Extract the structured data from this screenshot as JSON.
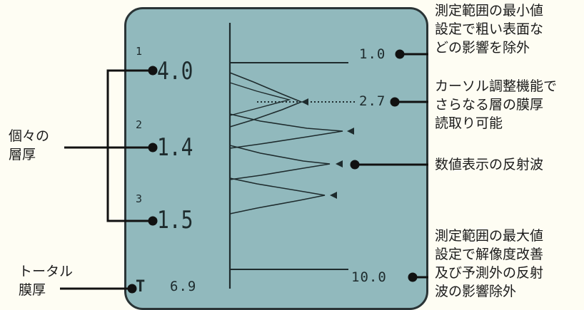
{
  "screen": {
    "layer_indices": [
      "1",
      "2",
      "3"
    ],
    "layer_thicknesses": [
      "4.0",
      "1.4",
      "1.5"
    ],
    "total_label": "T",
    "total_value": "6.9",
    "scale_min": "1.0",
    "cursor_value": "2.7",
    "scale_max": "10.0"
  },
  "callouts": {
    "min_setting": [
      "測定範囲の最小値",
      "設定で粗い表面な",
      "どの影響を除外"
    ],
    "cursor": [
      "カーソル調整機能で",
      "さらなる層の膜厚",
      "読取り可能"
    ],
    "reflection": [
      "数値表示の反射波"
    ],
    "max_setting": [
      "測定範囲の最大値",
      "設定で解像度改善",
      "及び予測外の反射",
      "波の影響除外"
    ],
    "layer_thickness": [
      "個々の",
      "層厚"
    ],
    "total_thickness": [
      "トータル",
      "膜厚"
    ]
  },
  "colors": {
    "screen_bg": "#91b9bd",
    "lcd_ink": "#1e2b2d",
    "page_bg": "#fefdf3",
    "callout_line": "#111111"
  }
}
